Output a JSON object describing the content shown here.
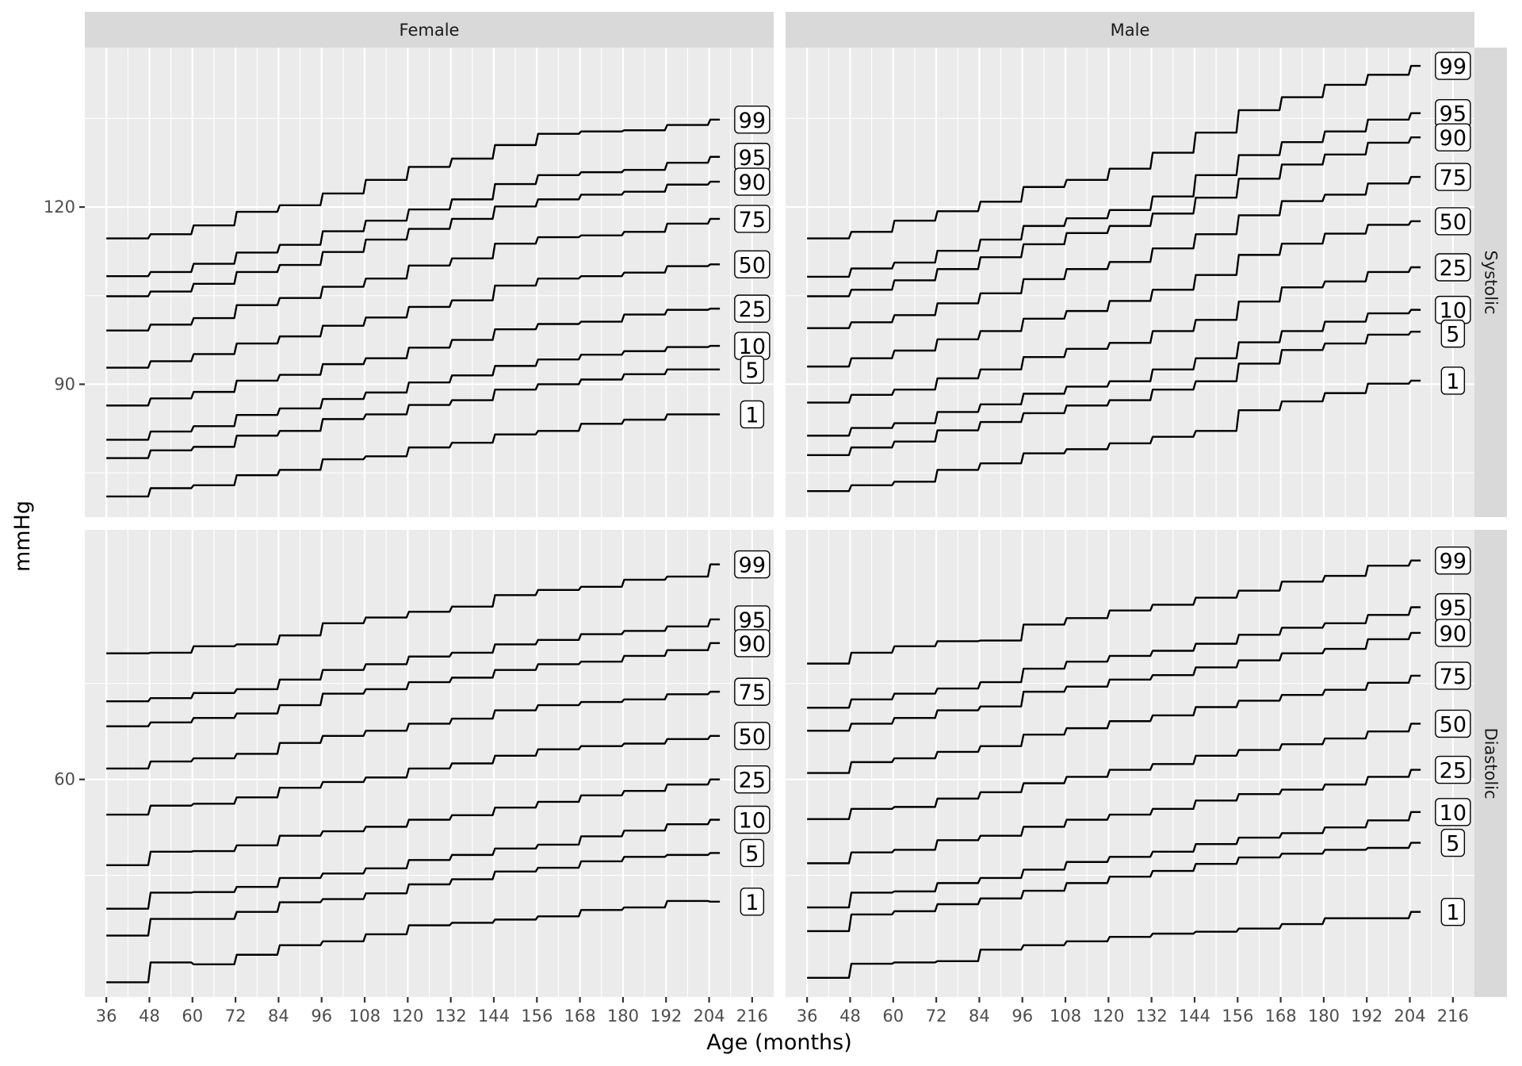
{
  "chart_data": {
    "type": "line",
    "line_style": "step",
    "xlabel": "Age (months)",
    "ylabel": "mmHg",
    "x_ticks": [
      36,
      48,
      60,
      72,
      84,
      96,
      108,
      120,
      132,
      144,
      156,
      168,
      180,
      192,
      204,
      216
    ],
    "x_range": [
      30,
      222
    ],
    "columns": [
      "Female",
      "Male"
    ],
    "rows": [
      "Systolic",
      "Diastolic"
    ],
    "grid": true,
    "panels": [
      {
        "column": "Female",
        "row": "Systolic",
        "ylim": [
          67.5,
          147
        ],
        "y_ticks": [
          90,
          120
        ],
        "y_tick_labels": [
          "90",
          "120"
        ],
        "series": [
          {
            "name": "99",
            "values": [
              114.7,
              115.4,
              116.9,
              119.2,
              120.3,
              122.3,
              124.6,
              126.8,
              128.2,
              130.5,
              132.4,
              132.8,
              133.0,
              133.9,
              134.8
            ]
          },
          {
            "name": "95",
            "values": [
              108.3,
              109.0,
              110.4,
              112.3,
              113.6,
              115.9,
              117.7,
              119.6,
              121.3,
              123.9,
              125.4,
              125.9,
              126.3,
              127.5,
              128.5
            ]
          },
          {
            "name": "90",
            "values": [
              104.9,
              105.7,
              107.0,
              109.0,
              110.2,
              112.4,
              114.5,
              116.3,
              118.0,
              120.1,
              121.3,
              122.1,
              122.6,
              123.8,
              124.3
            ]
          },
          {
            "name": "75",
            "values": [
              99.1,
              100.1,
              101.2,
              103.4,
              104.6,
              106.5,
              107.9,
              110.1,
              111.3,
              113.8,
              114.9,
              115.2,
              115.8,
              117.2,
              118.0
            ]
          },
          {
            "name": "50",
            "values": [
              92.8,
              93.9,
              95.1,
              96.9,
              98.1,
              99.9,
              101.3,
              103.1,
              104.2,
              106.7,
              107.9,
              108.3,
              108.9,
              110.0,
              110.3
            ]
          },
          {
            "name": "25",
            "values": [
              86.4,
              87.6,
              88.7,
              90.6,
              91.6,
              93.4,
              94.4,
              96.2,
              97.5,
              99.3,
              100.2,
              100.6,
              101.8,
              102.6,
              102.8
            ]
          },
          {
            "name": "10",
            "values": [
              80.6,
              82.0,
              82.9,
              84.8,
              85.9,
              87.5,
              88.6,
              90.3,
              91.5,
              93.1,
              94.2,
              95.0,
              95.6,
              96.3,
              96.5
            ]
          },
          {
            "name": "5",
            "values": [
              77.5,
              78.8,
              79.4,
              81.3,
              82.1,
              84.1,
              84.9,
              86.5,
              87.3,
              89.1,
              90.0,
              90.8,
              91.7,
              92.5,
              92.5
            ]
          },
          {
            "name": "1",
            "values": [
              71.0,
              72.4,
              72.9,
              74.6,
              75.5,
              77.3,
              77.8,
              79.3,
              80.1,
              81.5,
              82.1,
              83.3,
              84.0,
              84.9,
              84.9
            ]
          }
        ]
      },
      {
        "column": "Male",
        "row": "Systolic",
        "ylim": [
          67.5,
          147
        ],
        "y_ticks": [
          90,
          120
        ],
        "y_tick_labels": [
          "90",
          "120"
        ],
        "series": [
          {
            "name": "99",
            "values": [
              114.7,
              115.8,
              117.7,
              119.3,
              120.9,
              123.4,
              124.6,
              126.5,
              129.2,
              132.6,
              136.4,
              138.6,
              140.7,
              142.4,
              143.9
            ]
          },
          {
            "name": "95",
            "values": [
              108.2,
              109.6,
              110.6,
              112.6,
              114.5,
              116.8,
              118.1,
              119.5,
              121.8,
              125.4,
              128.8,
              131.0,
              132.8,
              134.8,
              135.9
            ]
          },
          {
            "name": "90",
            "values": [
              104.9,
              106.0,
              107.6,
              109.5,
              111.5,
              113.7,
              115.6,
              116.8,
              118.9,
              121.6,
              124.8,
              127.2,
              128.9,
              130.9,
              131.8
            ]
          },
          {
            "name": "75",
            "values": [
              99.5,
              100.5,
              101.7,
              103.7,
              105.4,
              107.8,
              109.5,
              110.7,
              113.0,
              115.4,
              118.6,
              121.0,
              122.1,
              124.0,
              125.1
            ]
          },
          {
            "name": "50",
            "values": [
              93.0,
              94.4,
              95.7,
              97.6,
              99.0,
              101.1,
              102.4,
              104.1,
              106.0,
              108.5,
              111.9,
              113.8,
              115.5,
              117.0,
              117.6
            ]
          },
          {
            "name": "25",
            "values": [
              86.9,
              88.2,
              89.1,
              91.0,
              92.5,
              94.6,
              96.0,
              97.0,
              99.0,
              100.9,
              104.0,
              106.4,
              107.4,
              109.0,
              109.8
            ]
          },
          {
            "name": "10",
            "values": [
              81.3,
              82.6,
              83.4,
              85.3,
              86.6,
              88.4,
              89.6,
              90.5,
              92.5,
              94.4,
              97.1,
              99.0,
              100.6,
              102.0,
              102.6
            ]
          },
          {
            "name": "5",
            "values": [
              78.0,
              79.3,
              80.3,
              82.2,
              83.6,
              85.1,
              86.4,
              87.3,
              89.1,
              90.5,
              93.5,
              95.8,
              96.9,
              98.4,
              98.9
            ]
          },
          {
            "name": "1",
            "values": [
              71.9,
              72.9,
              73.5,
              75.5,
              76.6,
              78.3,
              79.0,
              80.0,
              81.1,
              82.1,
              85.6,
              87.1,
              88.5,
              90.1,
              90.6
            ]
          }
        ]
      },
      {
        "column": "Female",
        "row": "Diastolic",
        "ylim": [
          26,
          99
        ],
        "y_ticks": [
          60
        ],
        "y_tick_labels": [
          "60"
        ],
        "series": [
          {
            "name": "99",
            "values": [
              79.7,
              79.8,
              80.8,
              81.1,
              82.5,
              84.4,
              85.3,
              86.2,
              87.0,
              88.8,
              89.6,
              90.1,
              91.2,
              91.7,
              93.6
            ]
          },
          {
            "name": "95",
            "values": [
              72.2,
              72.7,
              73.5,
              74.1,
              75.6,
              77.1,
              78.0,
              79.2,
              79.8,
              81.1,
              81.8,
              82.7,
              83.2,
              83.9,
              85.0
            ]
          },
          {
            "name": "90",
            "values": [
              68.3,
              68.9,
              69.6,
              70.3,
              71.6,
              73.4,
              74.1,
              75.2,
              75.9,
              77.1,
              78.0,
              78.4,
              79.3,
              80.2,
              81.3
            ]
          },
          {
            "name": "75",
            "values": [
              61.7,
              62.8,
              63.3,
              64.0,
              65.7,
              66.8,
              67.6,
              68.7,
              69.5,
              70.8,
              71.6,
              72.1,
              72.5,
              73.3,
              73.7
            ]
          },
          {
            "name": "50",
            "values": [
              54.5,
              55.9,
              56.2,
              57.2,
              58.7,
              59.6,
              60.3,
              61.7,
              62.5,
              63.7,
              64.7,
              65.2,
              65.6,
              66.3,
              66.8
            ]
          },
          {
            "name": "25",
            "values": [
              46.6,
              48.7,
              48.8,
              49.7,
              51.2,
              51.9,
              52.6,
              53.7,
              54.4,
              55.6,
              56.5,
              57.5,
              58.2,
              59.2,
              60.0
            ]
          },
          {
            "name": "10",
            "values": [
              39.8,
              42.3,
              42.4,
              43.2,
              44.6,
              45.3,
              46.1,
              47.4,
              48.2,
              49.2,
              49.8,
              51.1,
              52.0,
              53.0,
              53.7
            ]
          },
          {
            "name": "5",
            "values": [
              35.6,
              38.2,
              38.2,
              39.3,
              40.8,
              41.3,
              42.2,
              43.6,
              44.4,
              45.6,
              46.2,
              47.2,
              47.9,
              48.2,
              48.5
            ]
          },
          {
            "name": "1",
            "values": [
              28.3,
              31.4,
              31.1,
              32.6,
              34.1,
              34.7,
              35.8,
              37.2,
              37.6,
              38.1,
              38.6,
              39.6,
              40.0,
              41.0,
              40.9
            ]
          }
        ]
      },
      {
        "column": "Male",
        "row": "Diastolic",
        "ylim": [
          26,
          99
        ],
        "y_ticks": [
          60
        ],
        "y_tick_labels": [
          "60"
        ],
        "series": [
          {
            "name": "99",
            "values": [
              78.1,
              79.8,
              80.8,
              81.6,
              81.7,
              84.2,
              85.2,
              86.4,
              87.3,
              88.4,
              89.5,
              90.9,
              91.8,
              93.4,
              94.2
            ]
          },
          {
            "name": "95",
            "values": [
              71.2,
              72.5,
              73.4,
              74.2,
              75.2,
              77.3,
              78.4,
              79.3,
              80.1,
              81.2,
              82.6,
              83.7,
              84.4,
              85.7,
              86.9
            ]
          },
          {
            "name": "90",
            "values": [
              67.6,
              68.7,
              69.6,
              70.8,
              71.4,
              73.7,
              74.5,
              75.6,
              76.3,
              77.5,
              78.6,
              79.7,
              80.4,
              81.9,
              82.9
            ]
          },
          {
            "name": "75",
            "values": [
              61.0,
              62.7,
              63.3,
              64.3,
              65.2,
              67.0,
              68.0,
              69.1,
              70.0,
              71.3,
              72.3,
              73.2,
              74.0,
              75.1,
              76.2
            ]
          },
          {
            "name": "50",
            "values": [
              53.8,
              55.4,
              55.7,
              57.0,
              58.0,
              59.4,
              60.4,
              61.5,
              62.4,
              63.7,
              64.6,
              65.5,
              66.4,
              67.5,
              68.7
            ]
          },
          {
            "name": "25",
            "values": [
              46.9,
              48.6,
              49.0,
              50.5,
              51.2,
              52.6,
              53.7,
              54.5,
              55.4,
              56.7,
              57.7,
              58.4,
              59.2,
              60.4,
              61.5
            ]
          },
          {
            "name": "10",
            "values": [
              40.0,
              42.3,
              42.5,
              43.8,
              44.6,
              45.9,
              47.1,
              47.9,
              48.7,
              49.9,
              50.9,
              51.6,
              52.5,
              53.6,
              54.9
            ]
          },
          {
            "name": "5",
            "values": [
              36.3,
              38.9,
              39.4,
              40.5,
              41.4,
              42.6,
              43.8,
              44.8,
              45.7,
              46.8,
              47.8,
              48.4,
              49.0,
              49.3,
              50.1
            ]
          },
          {
            "name": "1",
            "values": [
              29.0,
              31.2,
              31.4,
              31.6,
              33.4,
              34.1,
              34.7,
              35.4,
              35.9,
              36.2,
              36.7,
              37.4,
              38.3,
              38.3,
              39.3
            ]
          }
        ]
      }
    ]
  }
}
